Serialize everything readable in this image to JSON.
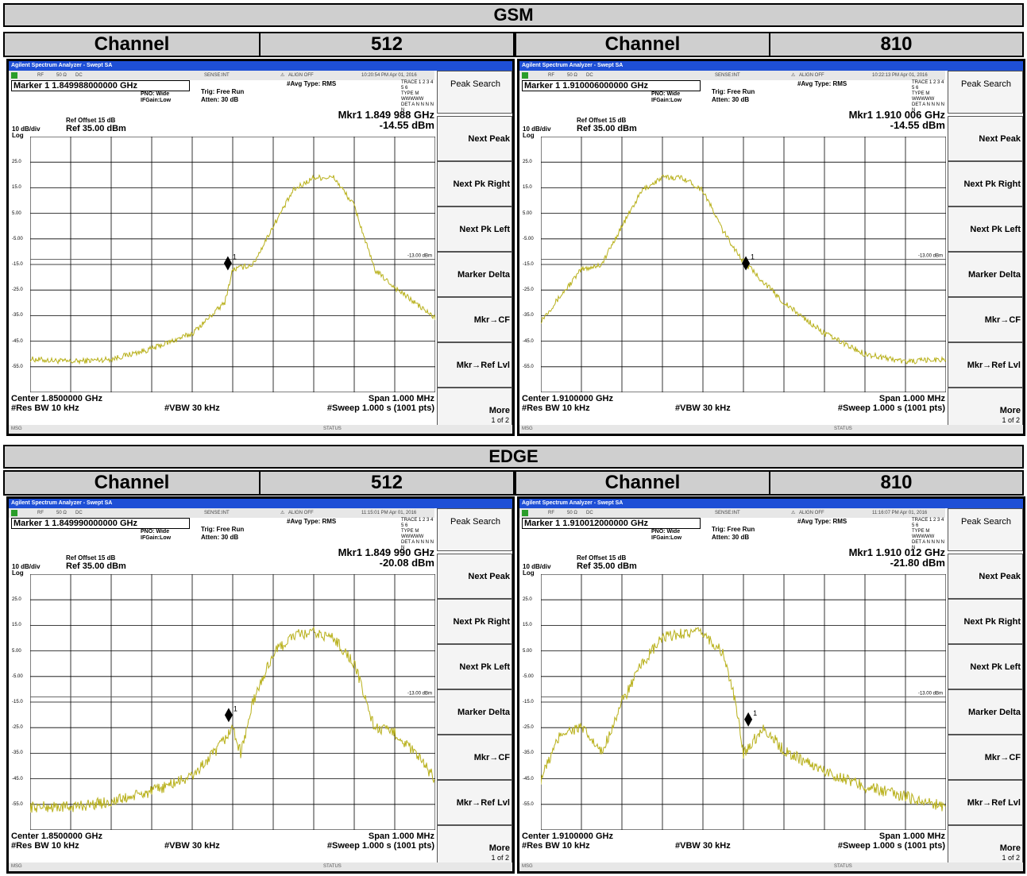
{
  "sections": [
    {
      "title": "GSM",
      "channel_label": "Channel",
      "ch_low": "512",
      "ch_high": "810"
    },
    {
      "title": "EDGE",
      "channel_label": "Channel",
      "ch_low": "512",
      "ch_high": "810"
    }
  ],
  "panels": [
    {
      "app_title": "Agilent Spectrum Analyzer - Swept SA",
      "rf": "RF",
      "ohm": "50 Ω",
      "dc": "DC",
      "sense": "SENSE:INT",
      "align": "ALIGN OFF",
      "timestamp": "10:20:54 PM Apr 01, 2016",
      "marker_title": "Marker 1  1.849988000000 GHz",
      "pno": "PNO: Wide",
      "ifgain": "IFGain:Low",
      "trig": "Trig: Free Run",
      "atten": "Atten: 30 dB",
      "avg": "#Avg Type: RMS",
      "trace_l1": "TRACE 1 2 3 4 5 6",
      "trace_l2": "TYPE M WWWWW",
      "trace_l3": "DET A N N N N N",
      "ref_offset": "Ref Offset 15 dB",
      "ref_level": "Ref 35.00 dBm",
      "scale": "10 dB/div",
      "log": "Log",
      "mkr_freq": "Mkr1 1.849 988 GHz",
      "mkr_amp": "-14.55 dBm",
      "limit_label": "-13.00 dBm",
      "marker_num": "1",
      "yticks": [
        "25.0",
        "15.0",
        "5.00",
        "-5.00",
        "-15.0",
        "-25.0",
        "-35.0",
        "-45.0",
        "-55.0"
      ],
      "center": "Center 1.8500000 GHz",
      "span": "Span 1.000 MHz",
      "rbw": "#Res BW  10 kHz",
      "vbw": "#VBW  30 kHz",
      "sweep": "#Sweep  1.000 s (1001 pts)",
      "msg": "MSG",
      "status": "STATUS"
    },
    {
      "app_title": "Agilent Spectrum Analyzer - Swept SA",
      "rf": "RF",
      "ohm": "50 Ω",
      "dc": "DC",
      "sense": "SENSE:INT",
      "align": "ALIGN OFF",
      "timestamp": "10:22:13 PM Apr 01, 2016",
      "marker_title": "Marker 1  1.910006000000 GHz",
      "pno": "PNO: Wide",
      "ifgain": "IFGain:Low",
      "trig": "Trig: Free Run",
      "atten": "Atten: 30 dB",
      "avg": "#Avg Type: RMS",
      "trace_l1": "TRACE 1 2 3 4 5 6",
      "trace_l2": "TYPE M WWWWW",
      "trace_l3": "DET A N N N N N",
      "ref_offset": "Ref Offset 15 dB",
      "ref_level": "Ref 35.00 dBm",
      "scale": "10 dB/div",
      "log": "Log",
      "mkr_freq": "Mkr1 1.910 006 GHz",
      "mkr_amp": "-14.55 dBm",
      "limit_label": "-13.00 dBm",
      "marker_num": "1",
      "yticks": [
        "25.0",
        "15.0",
        "5.00",
        "-5.00",
        "-15.0",
        "-25.0",
        "-35.0",
        "-45.0",
        "-55.0"
      ],
      "center": "Center 1.9100000 GHz",
      "span": "Span 1.000 MHz",
      "rbw": "#Res BW  10 kHz",
      "vbw": "#VBW  30 kHz",
      "sweep": "#Sweep  1.000 s (1001 pts)",
      "msg": "MSG",
      "status": "STATUS"
    },
    {
      "app_title": "Agilent Spectrum Analyzer - Swept SA",
      "rf": "RF",
      "ohm": "50 Ω",
      "dc": "DC",
      "sense": "SENSE:INT",
      "align": "ALIGN OFF",
      "timestamp": "11:15:01 PM Apr 01, 2016",
      "marker_title": "Marker 1  1.849990000000 GHz",
      "pno": "PNO: Wide",
      "ifgain": "IFGain:Low",
      "trig": "Trig: Free Run",
      "atten": "Atten: 30 dB",
      "avg": "#Avg Type: RMS",
      "trace_l1": "TRACE 1 2 3 4 5 6",
      "trace_l2": "TYPE M WWWWW",
      "trace_l3": "DET A N N N N N",
      "ref_offset": "Ref Offset 15 dB",
      "ref_level": "Ref 35.00 dBm",
      "scale": "10 dB/div",
      "log": "Log",
      "mkr_freq": "Mkr1 1.849 990 GHz",
      "mkr_amp": "-20.08 dBm",
      "limit_label": "-13.00 dBm",
      "marker_num": "1",
      "yticks": [
        "25.0",
        "15.0",
        "5.00",
        "-5.00",
        "-15.0",
        "-25.0",
        "-35.0",
        "-45.0",
        "-55.0"
      ],
      "center": "Center 1.8500000 GHz",
      "span": "Span 1.000 MHz",
      "rbw": "#Res BW  10 kHz",
      "vbw": "#VBW  30 kHz",
      "sweep": "#Sweep  1.000 s (1001 pts)",
      "msg": "MSG",
      "status": "STATUS"
    },
    {
      "app_title": "Agilent Spectrum Analyzer - Swept SA",
      "rf": "RF",
      "ohm": "50 Ω",
      "dc": "DC",
      "sense": "SENSE:INT",
      "align": "ALIGN OFF",
      "timestamp": "11:16:07 PM Apr 01, 2016",
      "marker_title": "Marker 1  1.910012000000 GHz",
      "pno": "PNO: Wide",
      "ifgain": "IFGain:Low",
      "trig": "Trig: Free Run",
      "atten": "Atten: 30 dB",
      "avg": "#Avg Type: RMS",
      "trace_l1": "TRACE 1 2 3 4 5 6",
      "trace_l2": "TYPE M WWWWW",
      "trace_l3": "DET A N N N N N",
      "ref_offset": "Ref Offset 15 dB",
      "ref_level": "Ref 35.00 dBm",
      "scale": "10 dB/div",
      "log": "Log",
      "mkr_freq": "Mkr1 1.910 012 GHz",
      "mkr_amp": "-21.80 dBm",
      "limit_label": "-13.00 dBm",
      "marker_num": "1",
      "yticks": [
        "25.0",
        "15.0",
        "5.00",
        "-5.00",
        "-15.0",
        "-25.0",
        "-35.0",
        "-45.0",
        "-55.0"
      ],
      "center": "Center 1.9100000 GHz",
      "span": "Span 1.000 MHz",
      "rbw": "#Res BW  10 kHz",
      "vbw": "#VBW  30 kHz",
      "sweep": "#Sweep  1.000 s (1001 pts)",
      "msg": "MSG",
      "status": "STATUS"
    }
  ],
  "softkeys": [
    {
      "label": "Peak Search",
      "sub": ""
    },
    {
      "label": "Next Peak",
      "sub": ""
    },
    {
      "label": "Next Pk Right",
      "sub": ""
    },
    {
      "label": "Next Pk Left",
      "sub": ""
    },
    {
      "label": "Marker Delta",
      "sub": ""
    },
    {
      "label": "Mkr→CF",
      "sub": ""
    },
    {
      "label": "Mkr→Ref Lvl",
      "sub": ""
    },
    {
      "label": "More",
      "sub": "1 of 2"
    }
  ],
  "colors": {
    "trace": "#b8b01a",
    "title_bar": "#1e4fd6",
    "band": "#cfcfcf"
  },
  "chart_data": [
    {
      "type": "line",
      "ylim": [
        -65,
        35
      ],
      "limit_line": -13,
      "xlim_mhz": [
        -0.5,
        0.5
      ],
      "trace_x_mhz": [
        -0.5,
        -0.4,
        -0.3,
        -0.2,
        -0.1,
        -0.02,
        0.0,
        0.05,
        0.1,
        0.15,
        0.2,
        0.25,
        0.3,
        0.35,
        0.4,
        0.5
      ],
      "trace_y": [
        -52,
        -53,
        -52,
        -48,
        -42,
        -30,
        -17,
        -15,
        0,
        14,
        19,
        19,
        8,
        -17,
        -24,
        -36
      ],
      "marker_x_mhz": -0.012,
      "marker_y": -14.55
    },
    {
      "type": "line",
      "ylim": [
        -65,
        35
      ],
      "limit_line": -13,
      "xlim_mhz": [
        -0.5,
        0.5
      ],
      "trace_x_mhz": [
        -0.5,
        -0.4,
        -0.35,
        -0.3,
        -0.25,
        -0.2,
        -0.15,
        -0.1,
        -0.05,
        0.0,
        0.02,
        0.1,
        0.2,
        0.3,
        0.4,
        0.5
      ],
      "trace_y": [
        -37,
        -17,
        -15,
        0,
        14,
        19,
        19,
        14,
        -2,
        -14,
        -17,
        -30,
        -42,
        -50,
        -53,
        -52
      ],
      "marker_x_mhz": 0.006,
      "marker_y": -14.55
    },
    {
      "type": "line",
      "ylim": [
        -65,
        35
      ],
      "limit_line": -13,
      "xlim_mhz": [
        -0.5,
        0.5
      ],
      "trace_x_mhz": [
        -0.5,
        -0.4,
        -0.3,
        -0.2,
        -0.1,
        -0.04,
        0.0,
        0.02,
        0.05,
        0.1,
        0.15,
        0.2,
        0.25,
        0.3,
        0.35,
        0.4,
        0.45,
        0.5
      ],
      "trace_y": [
        -56,
        -56,
        -54,
        -50,
        -44,
        -34,
        -25,
        -35,
        -15,
        4,
        11,
        12,
        10,
        0,
        -25,
        -27,
        -35,
        -45
      ],
      "marker_x_mhz": -0.01,
      "marker_y": -20.08
    },
    {
      "type": "line",
      "ylim": [
        -65,
        35
      ],
      "limit_line": -13,
      "xlim_mhz": [
        -0.5,
        0.5
      ],
      "trace_x_mhz": [
        -0.5,
        -0.45,
        -0.4,
        -0.35,
        -0.3,
        -0.25,
        -0.2,
        -0.15,
        -0.1,
        -0.05,
        -0.02,
        0.0,
        0.05,
        0.1,
        0.2,
        0.3,
        0.4,
        0.5
      ],
      "trace_y": [
        -45,
        -27,
        -25,
        -35,
        -15,
        0,
        10,
        12,
        12,
        4,
        -15,
        -35,
        -25,
        -34,
        -42,
        -48,
        -52,
        -56
      ],
      "marker_x_mhz": 0.012,
      "marker_y": -21.8
    }
  ]
}
